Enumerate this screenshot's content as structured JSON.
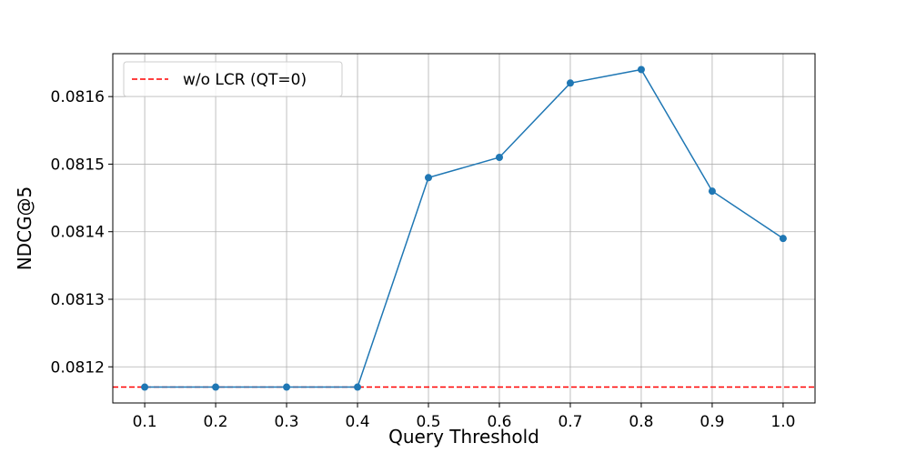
{
  "chart_data": {
    "type": "line",
    "x_label": "Query Threshold",
    "y_label": "NDCG@5",
    "x": [
      0.1,
      0.2,
      0.3,
      0.4,
      0.5,
      0.6,
      0.7,
      0.8,
      0.9,
      1.0
    ],
    "values": [
      0.08117,
      0.08117,
      0.08117,
      0.08117,
      0.08148,
      0.08151,
      0.08162,
      0.08164,
      0.08146,
      0.08139
    ],
    "color": "#1f77b4",
    "reference_line": {
      "value": 0.08117,
      "label": "w/o LCR (QT=0)",
      "color": "#ff0000"
    },
    "xlim": [
      0.055,
      1.045
    ],
    "xticks": [
      0.1,
      0.2,
      0.3,
      0.4,
      0.5,
      0.6,
      0.7,
      0.8,
      0.9,
      {
        "value": 1.0,
        "label": "1.0"
      }
    ],
    "ylim": [
      0.0811465,
      0.0816635
    ],
    "yticks": [
      0.0812,
      0.0813,
      0.0814,
      0.0815,
      0.0816
    ],
    "grid": true,
    "legend": "upper left"
  }
}
